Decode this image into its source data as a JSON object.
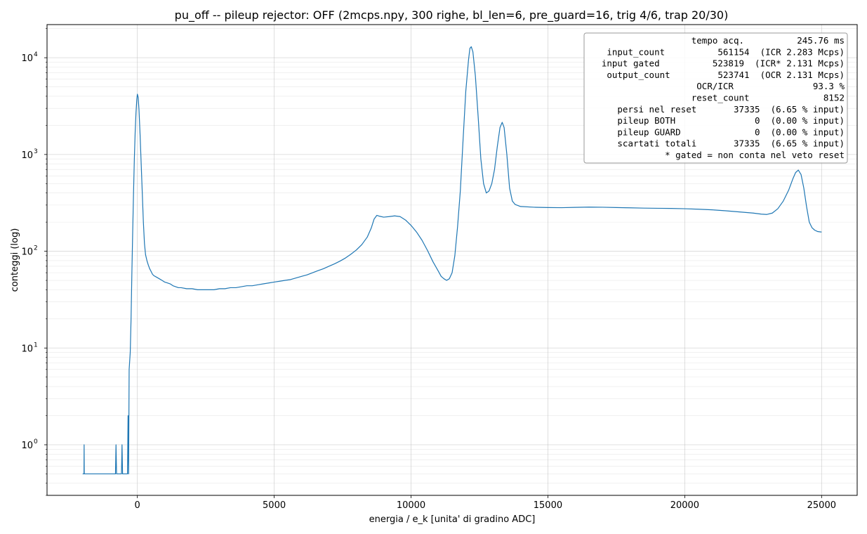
{
  "chart_data": {
    "type": "line",
    "title": "pu_off  --  pileup rejector: OFF   (2mcps.npy, 300 righe, bl_len=6, pre_guard=16, trig 4/6, trap 20/30)",
    "xlabel": "energia / e_k  [unita' di gradino ADC]",
    "ylabel": "conteggi (log)",
    "xlim": [
      -3300,
      26300
    ],
    "ylim": [
      0.3,
      22000
    ],
    "yscale": "log",
    "grid": true,
    "x_ticks": [
      0,
      5000,
      10000,
      15000,
      20000,
      25000
    ],
    "x_tick_labels": [
      "0",
      "5000",
      "10000",
      "15000",
      "20000",
      "25000"
    ],
    "y_ticks": [
      1,
      10,
      100,
      1000,
      10000
    ],
    "y_tick_labels": [
      "10",
      "10",
      "10",
      "10",
      "10"
    ],
    "y_tick_exponents": [
      "0",
      "1",
      "2",
      "3",
      "4"
    ],
    "series_color": "#1f77b4",
    "series": [
      {
        "points": [
          [
            -2000,
            0.5
          ],
          [
            -1950,
            0.5
          ],
          [
            -1945,
            1.0
          ],
          [
            -1940,
            0.5
          ],
          [
            -800,
            0.5
          ],
          [
            -780,
            1.0
          ],
          [
            -760,
            0.5
          ],
          [
            -580,
            0.5
          ],
          [
            -560,
            1.0
          ],
          [
            -540,
            0.5
          ],
          [
            -360,
            0.5
          ],
          [
            -340,
            2.0
          ],
          [
            -320,
            0.5
          ],
          [
            -300,
            6
          ],
          [
            -260,
            9
          ],
          [
            -230,
            20
          ],
          [
            -200,
            60
          ],
          [
            -170,
            160
          ],
          [
            -140,
            400
          ],
          [
            -110,
            900
          ],
          [
            -80,
            1700
          ],
          [
            -50,
            2700
          ],
          [
            -20,
            3700
          ],
          [
            0,
            4200
          ],
          [
            30,
            3900
          ],
          [
            60,
            2900
          ],
          [
            100,
            1600
          ],
          [
            140,
            800
          ],
          [
            180,
            400
          ],
          [
            220,
            200
          ],
          [
            260,
            120
          ],
          [
            300,
            92
          ],
          [
            350,
            80
          ],
          [
            400,
            72
          ],
          [
            450,
            66
          ],
          [
            500,
            62
          ],
          [
            550,
            58
          ],
          [
            600,
            56
          ],
          [
            700,
            54
          ],
          [
            800,
            52
          ],
          [
            900,
            50
          ],
          [
            1000,
            48
          ],
          [
            1100,
            47
          ],
          [
            1200,
            46
          ],
          [
            1300,
            44
          ],
          [
            1400,
            43
          ],
          [
            1500,
            42
          ],
          [
            1600,
            42
          ],
          [
            1800,
            41
          ],
          [
            2000,
            41
          ],
          [
            2200,
            40
          ],
          [
            2400,
            40
          ],
          [
            2600,
            40
          ],
          [
            2800,
            40
          ],
          [
            3000,
            41
          ],
          [
            3200,
            41
          ],
          [
            3400,
            42
          ],
          [
            3600,
            42
          ],
          [
            3800,
            43
          ],
          [
            4000,
            44
          ],
          [
            4200,
            44
          ],
          [
            4400,
            45
          ],
          [
            4600,
            46
          ],
          [
            4800,
            47
          ],
          [
            5000,
            48
          ],
          [
            5200,
            49
          ],
          [
            5400,
            50
          ],
          [
            5600,
            51
          ],
          [
            5800,
            53
          ],
          [
            6000,
            55
          ],
          [
            6200,
            57
          ],
          [
            6400,
            60
          ],
          [
            6600,
            63
          ],
          [
            6800,
            66
          ],
          [
            7000,
            70
          ],
          [
            7200,
            74
          ],
          [
            7400,
            79
          ],
          [
            7600,
            85
          ],
          [
            7800,
            93
          ],
          [
            8000,
            103
          ],
          [
            8200,
            117
          ],
          [
            8400,
            140
          ],
          [
            8550,
            175
          ],
          [
            8650,
            215
          ],
          [
            8750,
            235
          ],
          [
            8850,
            230
          ],
          [
            9000,
            225
          ],
          [
            9200,
            228
          ],
          [
            9400,
            232
          ],
          [
            9600,
            228
          ],
          [
            9800,
            210
          ],
          [
            10000,
            185
          ],
          [
            10200,
            158
          ],
          [
            10400,
            130
          ],
          [
            10600,
            102
          ],
          [
            10800,
            78
          ],
          [
            11000,
            62
          ],
          [
            11100,
            55
          ],
          [
            11200,
            52
          ],
          [
            11300,
            50
          ],
          [
            11400,
            52
          ],
          [
            11500,
            60
          ],
          [
            11600,
            90
          ],
          [
            11700,
            180
          ],
          [
            11800,
            420
          ],
          [
            11900,
            1400
          ],
          [
            12000,
            4500
          ],
          [
            12100,
            9500
          ],
          [
            12150,
            12500
          ],
          [
            12200,
            13000
          ],
          [
            12260,
            11500
          ],
          [
            12350,
            6500
          ],
          [
            12450,
            2500
          ],
          [
            12550,
            900
          ],
          [
            12650,
            500
          ],
          [
            12750,
            400
          ],
          [
            12850,
            420
          ],
          [
            12950,
            500
          ],
          [
            13050,
            700
          ],
          [
            13150,
            1200
          ],
          [
            13250,
            1900
          ],
          [
            13330,
            2150
          ],
          [
            13400,
            1900
          ],
          [
            13500,
            1000
          ],
          [
            13600,
            450
          ],
          [
            13700,
            330
          ],
          [
            13800,
            305
          ],
          [
            14000,
            290
          ],
          [
            14500,
            285
          ],
          [
            15000,
            283
          ],
          [
            15500,
            282
          ],
          [
            16000,
            284
          ],
          [
            16500,
            286
          ],
          [
            17000,
            285
          ],
          [
            17500,
            283
          ],
          [
            18000,
            281
          ],
          [
            18500,
            279
          ],
          [
            19000,
            278
          ],
          [
            19500,
            277
          ],
          [
            20000,
            275
          ],
          [
            20500,
            272
          ],
          [
            21000,
            268
          ],
          [
            21500,
            262
          ],
          [
            22000,
            255
          ],
          [
            22500,
            248
          ],
          [
            22800,
            242
          ],
          [
            23000,
            240
          ],
          [
            23200,
            248
          ],
          [
            23400,
            275
          ],
          [
            23600,
            330
          ],
          [
            23800,
            430
          ],
          [
            23950,
            560
          ],
          [
            24050,
            650
          ],
          [
            24150,
            690
          ],
          [
            24250,
            620
          ],
          [
            24350,
            450
          ],
          [
            24450,
            290
          ],
          [
            24550,
            200
          ],
          [
            24650,
            175
          ],
          [
            24750,
            165
          ],
          [
            24850,
            160
          ],
          [
            25000,
            158
          ]
        ]
      }
    ]
  },
  "legend": {
    "lines": [
      "             tempo acq.          245.76 ms",
      " input_count          561154  (ICR 2.283 Mcps)",
      "input gated          523819  (ICR* 2.131 Mcps)",
      " output_count         523741  (OCR 2.131 Mcps)",
      "               OCR/ICR               93.3 %",
      "           reset_count              8152",
      "   persi nel reset       37335  (6.65 % input)",
      "   pileup BOTH               0  (0.00 % input)",
      "   pileup GUARD              0  (0.00 % input)",
      "   scartati totali       37335  (6.65 % input)",
      "          * gated = non conta nel veto reset"
    ]
  }
}
